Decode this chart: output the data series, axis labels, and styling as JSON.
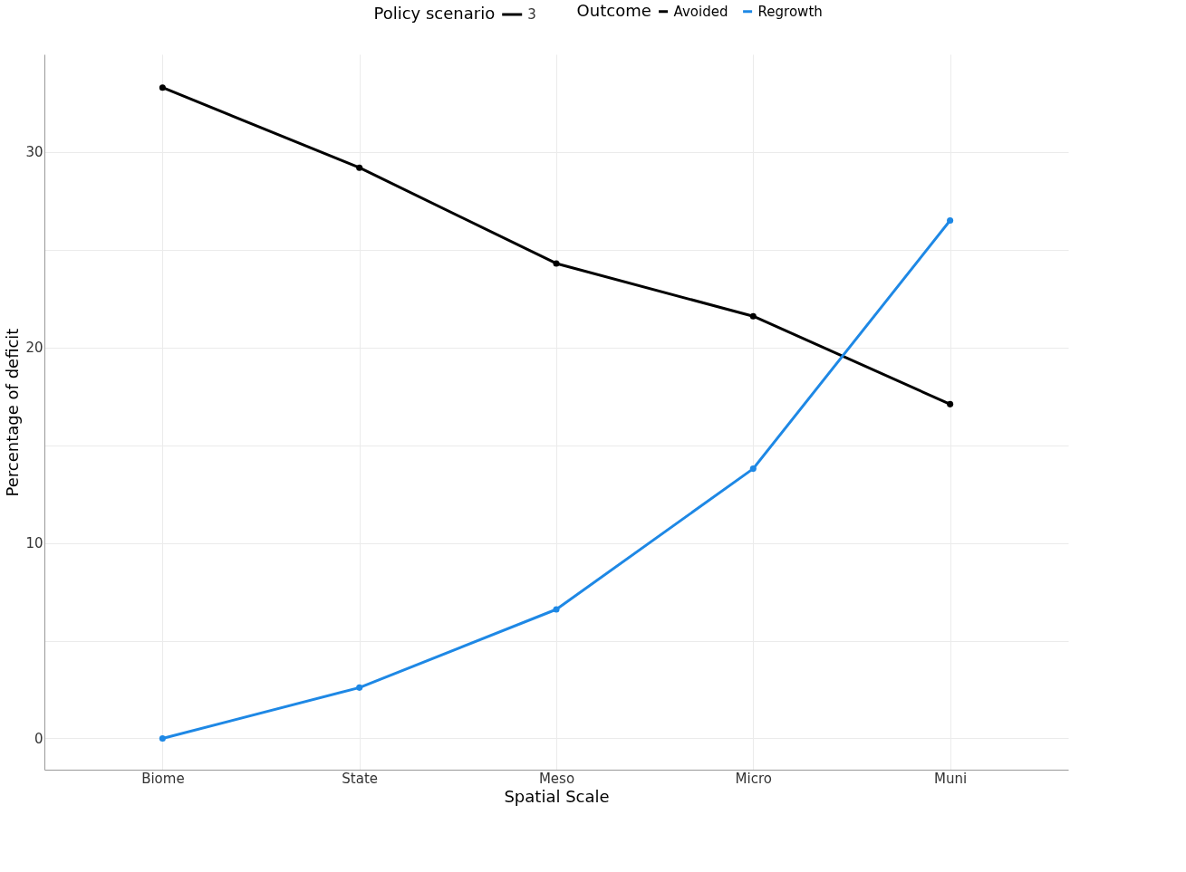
{
  "chart_data": {
    "type": "line",
    "xlabel": "Spatial Scale",
    "ylabel": "Percentage of deficit",
    "legend_title": "Outcome",
    "annotations": [
      "Policy scenario",
      "3"
    ],
    "categories": [
      "Biome",
      "State",
      "Meso",
      "Micro",
      "Muni"
    ],
    "series": [
      {
        "name": "Avoided",
        "color": "#000000",
        "values": [
          33.3,
          29.2,
          24.3,
          21.6,
          17.1
        ]
      },
      {
        "name": "Regrowth",
        "color": "#1e88e5",
        "values": [
          0,
          2.6,
          6.6,
          13.8,
          26.5
        ]
      }
    ],
    "ylim": [
      -1.6,
      35
    ],
    "yticks": [
      0,
      {
        "value": 5,
        "label": null
      },
      10,
      {
        "value": 15,
        "label": null
      },
      20,
      {
        "value": 25,
        "label": null
      },
      30
    ],
    "grid": true,
    "legend": "top",
    "marker": "circle",
    "line_style": "solid"
  }
}
